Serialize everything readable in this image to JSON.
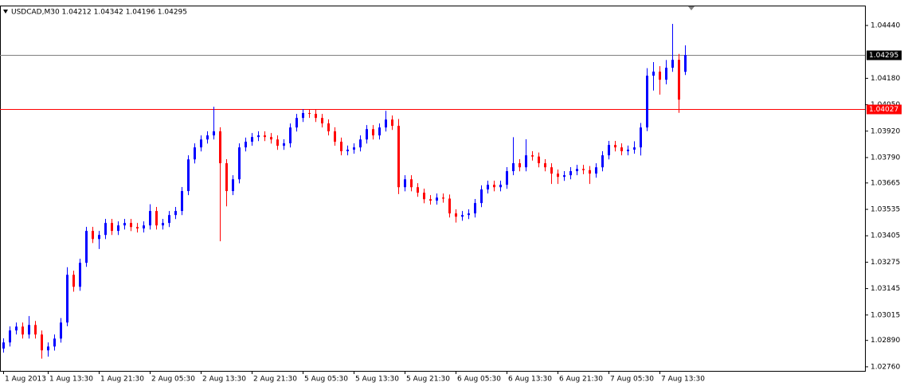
{
  "chart_data": {
    "type": "candlestick",
    "header": "USDCAD,M30  1.04212 1.04342 1.04196 1.04295",
    "categories": [
      "1 Aug 2013",
      null,
      null,
      null,
      null,
      null,
      null,
      "1 Aug 13:30",
      null,
      null,
      null,
      null,
      null,
      null,
      null,
      "1 Aug 21:30",
      null,
      null,
      null,
      null,
      null,
      null,
      null,
      "2 Aug 05:30",
      null,
      null,
      null,
      null,
      null,
      null,
      null,
      "2 Aug 13:30",
      null,
      null,
      null,
      null,
      null,
      null,
      null,
      "2 Aug 21:30",
      null,
      null,
      null,
      null,
      null,
      null,
      null,
      "5 Aug 05:30",
      null,
      null,
      null,
      null,
      null,
      null,
      null,
      "5 Aug 13:30",
      null,
      null,
      null,
      null,
      null,
      null,
      null,
      "5 Aug 21:30",
      null,
      null,
      null,
      null,
      null,
      null,
      null,
      "6 Aug 05:30",
      null,
      null,
      null,
      null,
      null,
      null,
      null,
      "6 Aug 13:30",
      null,
      null,
      null,
      null,
      null,
      null,
      null,
      "6 Aug 21:30",
      null,
      null,
      null,
      null,
      null,
      null,
      null,
      "7 Aug 05:30",
      null,
      null,
      null,
      null,
      null,
      null,
      null,
      "7 Aug 13:30",
      null,
      null,
      null,
      null
    ],
    "open": [
      1.0285,
      1.0288,
      1.02939,
      1.02958,
      1.02919,
      1.02966,
      1.02919,
      1.02841,
      1.0286,
      1.02899,
      1.02978,
      1.03213,
      1.03154,
      1.03272,
      1.03429,
      1.03389,
      1.03409,
      1.03468,
      1.03429,
      1.03456,
      1.03468,
      1.03448,
      1.03441,
      1.03456,
      1.03527,
      1.03456,
      1.03468,
      1.03507,
      1.03527,
      1.03625,
      1.03781,
      1.0384,
      1.03879,
      1.03899,
      1.03919,
      1.03762,
      1.03625,
      1.03683,
      1.0384,
      1.03868,
      1.03891,
      1.03899,
      1.03891,
      1.03879,
      1.03848,
      1.0386,
      1.03938,
      1.03985,
      1.04009,
      1.04005,
      1.03985,
      1.03958,
      1.03919,
      1.03868,
      1.03821,
      1.03829,
      1.0384,
      1.03879,
      1.0393,
      1.03899,
      1.03938,
      1.03977,
      1.03946,
      1.03644,
      1.03683,
      1.03644,
      1.03617,
      1.03585,
      1.03578,
      1.03593,
      1.03588,
      1.03515,
      1.03499,
      1.03507,
      1.03515,
      1.03566,
      1.03633,
      1.03656,
      1.03644,
      1.03656,
      1.03723,
      1.03762,
      1.03742,
      1.03801,
      1.03795,
      1.03762,
      1.03742,
      1.03711,
      1.03695,
      1.03703,
      1.03723,
      1.03734,
      1.03728,
      1.03711,
      1.03742,
      1.03801,
      1.03852,
      1.0384,
      1.03821,
      1.03829,
      1.0384,
      1.03938,
      1.04193,
      1.04213,
      1.04173,
      1.04232,
      1.04271,
      1.04212
    ],
    "high": [
      1.029,
      1.02959,
      1.02978,
      1.02978,
      1.0301,
      1.02986,
      1.02939,
      1.0288,
      1.02919,
      1.03,
      1.0325,
      1.03233,
      1.03292,
      1.03449,
      1.03449,
      1.03429,
      1.03488,
      1.03488,
      1.03476,
      1.03488,
      1.03488,
      1.03468,
      1.03476,
      1.0356,
      1.03547,
      1.03488,
      1.03527,
      1.03547,
      1.03645,
      1.03801,
      1.0386,
      1.03899,
      1.03919,
      1.0404,
      1.03939,
      1.03782,
      1.03703,
      1.0386,
      1.03888,
      1.03911,
      1.03919,
      1.03919,
      1.03911,
      1.03899,
      1.0388,
      1.03958,
      1.04005,
      1.04029,
      1.04029,
      1.04025,
      1.04005,
      1.03978,
      1.03939,
      1.03888,
      1.03849,
      1.0386,
      1.03899,
      1.0395,
      1.0395,
      1.03958,
      1.0402,
      1.03997,
      1.0398,
      1.03703,
      1.03703,
      1.03664,
      1.03637,
      1.03605,
      1.03613,
      1.03613,
      1.03608,
      1.03535,
      1.03527,
      1.03535,
      1.03586,
      1.03653,
      1.03676,
      1.03676,
      1.03676,
      1.03743,
      1.0389,
      1.03782,
      1.0388,
      1.03821,
      1.03815,
      1.03782,
      1.03762,
      1.03731,
      1.03723,
      1.03743,
      1.03754,
      1.03754,
      1.03748,
      1.03762,
      1.03821,
      1.03872,
      1.03872,
      1.0386,
      1.03849,
      1.0387,
      1.0396,
      1.0423,
      1.0426,
      1.0424,
      1.0427,
      1.04448,
      1.043,
      1.04342
    ],
    "low": [
      1.0283,
      1.0286,
      1.02919,
      1.02899,
      1.02899,
      1.02899,
      1.028,
      1.0281,
      1.0284,
      1.02879,
      1.0296,
      1.0313,
      1.03134,
      1.03252,
      1.03369,
      1.0334,
      1.03389,
      1.03409,
      1.03409,
      1.03436,
      1.03428,
      1.03421,
      1.03421,
      1.03436,
      1.03436,
      1.03436,
      1.03448,
      1.03487,
      1.03507,
      1.03605,
      1.03761,
      1.0382,
      1.03859,
      1.03879,
      1.03378,
      1.0355,
      1.03605,
      1.03663,
      1.0382,
      1.03848,
      1.03871,
      1.03871,
      1.03859,
      1.03828,
      1.03828,
      1.0384,
      1.03918,
      1.03965,
      1.03985,
      1.03965,
      1.03938,
      1.03899,
      1.03848,
      1.03801,
      1.03801,
      1.03809,
      1.0382,
      1.03859,
      1.03879,
      1.03879,
      1.03918,
      1.03926,
      1.0361,
      1.03624,
      1.03624,
      1.03597,
      1.03565,
      1.03558,
      1.03558,
      1.03568,
      1.03495,
      1.0347,
      1.03479,
      1.03487,
      1.03495,
      1.03546,
      1.03613,
      1.03624,
      1.03624,
      1.03636,
      1.03703,
      1.03722,
      1.03722,
      1.03775,
      1.03742,
      1.03722,
      1.0366,
      1.0366,
      1.03675,
      1.03683,
      1.03703,
      1.03708,
      1.0366,
      1.03691,
      1.03722,
      1.03781,
      1.0382,
      1.03801,
      1.03801,
      1.03809,
      1.038,
      1.0392,
      1.0412,
      1.041,
      1.0415,
      1.04212,
      1.0401,
      1.04196
    ],
    "close": [
      1.0288,
      1.02939,
      1.02958,
      1.02919,
      1.02966,
      1.02919,
      1.02841,
      1.0286,
      1.02899,
      1.02978,
      1.03213,
      1.03154,
      1.03272,
      1.03429,
      1.03389,
      1.03409,
      1.03468,
      1.03429,
      1.03456,
      1.03468,
      1.03448,
      1.03441,
      1.03456,
      1.03527,
      1.03456,
      1.03468,
      1.03507,
      1.03527,
      1.03625,
      1.03781,
      1.0384,
      1.03879,
      1.03899,
      1.03919,
      1.03762,
      1.03625,
      1.03683,
      1.0384,
      1.03868,
      1.03891,
      1.03899,
      1.03891,
      1.03879,
      1.03848,
      1.0386,
      1.03938,
      1.03985,
      1.04009,
      1.04005,
      1.03985,
      1.03958,
      1.03919,
      1.03868,
      1.03821,
      1.03829,
      1.0384,
      1.03879,
      1.0393,
      1.03899,
      1.03938,
      1.03977,
      1.03946,
      1.03644,
      1.03683,
      1.03644,
      1.03617,
      1.03585,
      1.03578,
      1.03593,
      1.03588,
      1.03515,
      1.03499,
      1.03507,
      1.03515,
      1.03566,
      1.03633,
      1.03656,
      1.03644,
      1.03656,
      1.03723,
      1.03762,
      1.03742,
      1.03801,
      1.03795,
      1.03762,
      1.03742,
      1.03711,
      1.03695,
      1.03703,
      1.03723,
      1.03734,
      1.03728,
      1.03711,
      1.03742,
      1.03801,
      1.03852,
      1.0384,
      1.03821,
      1.03829,
      1.0384,
      1.03938,
      1.04193,
      1.04213,
      1.04173,
      1.04232,
      1.04271,
      1.04075,
      1.04295
    ],
    "up_color": "#0000ff",
    "down_color": "#ff0000",
    "ylim": [
      1.0274,
      1.04538
    ],
    "yticks": [
      {
        "value": 1.0444,
        "label": "1.04440"
      },
      {
        "value": 1.0418,
        "label": "1.04180"
      },
      {
        "value": 1.0405,
        "label": "1.04050"
      },
      {
        "value": 1.0392,
        "label": "1.03920"
      },
      {
        "value": 1.0379,
        "label": "1.03790"
      },
      1.03665,
      1.03535,
      1.03405,
      1.03275,
      1.03145,
      1.03015,
      {
        "value": 1.0289,
        "label": "1.02890"
      },
      {
        "value": 1.0276,
        "label": "1.02760"
      }
    ],
    "price_lines": [
      {
        "value": 1.04295,
        "color": "#808080",
        "label_color": "#000000"
      },
      {
        "value": 1.04027,
        "color": "#ff0000",
        "label_color": "#ff0000"
      }
    ],
    "grid": false
  }
}
